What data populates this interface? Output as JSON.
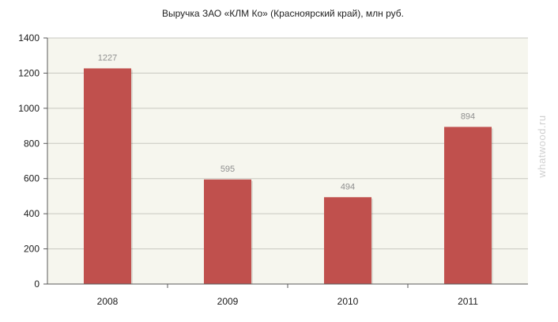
{
  "chart_data": {
    "type": "bar",
    "title": "Выручка ЗАО «КЛМ Ко» (Красноярский край), млн руб.",
    "categories": [
      "2008",
      "2009",
      "2010",
      "2011"
    ],
    "series": [
      {
        "values": [
          1227,
          595,
          494,
          894
        ]
      }
    ],
    "data_labels": [
      "1227",
      "595",
      "494",
      "894"
    ],
    "xlabel": "",
    "ylabel": "",
    "ylim": [
      0,
      1400
    ],
    "y_ticks": [
      "0",
      "200",
      "400",
      "600",
      "800",
      "1000",
      "1200",
      "1400"
    ],
    "y_tick_values": [
      0,
      200,
      400,
      600,
      800,
      1000,
      1200,
      1400
    ],
    "grid": true,
    "legend": "none"
  },
  "watermark": "whatwood.ru",
  "colors": {
    "bar": "#c0504d",
    "plot_background": "#f6f6ee",
    "grid": "#c8c8c0",
    "axis": "#5a5a5a"
  }
}
